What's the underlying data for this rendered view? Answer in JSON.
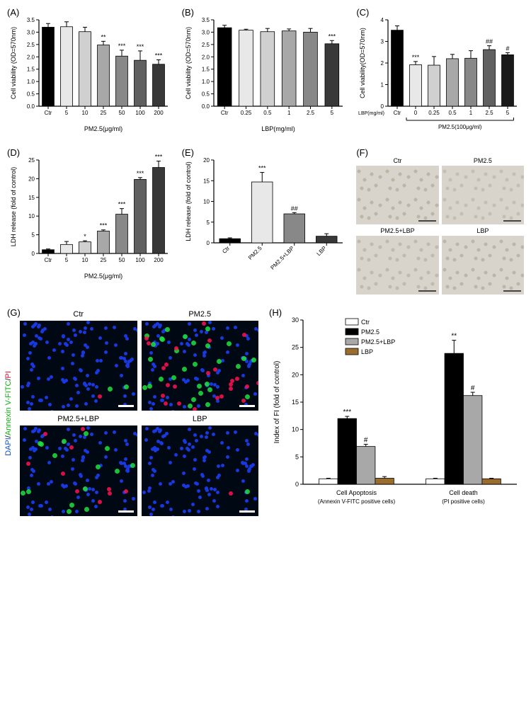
{
  "colors": {
    "axis": "#000000",
    "bar_stroke": "#000000",
    "error_bar": "#000000",
    "bar_fills": [
      "#000000",
      "#e8e8e8",
      "#d0d0d0",
      "#a8a8a8",
      "#888888",
      "#606060",
      "#383838",
      "#1a1a1a"
    ]
  },
  "panelA": {
    "label": "(A)",
    "type": "bar",
    "ylabel": "Cell viability (OD=570nm)",
    "xlabel": "PM2.5(μg/ml)",
    "categories": [
      "Ctr",
      "5",
      "10",
      "25",
      "50",
      "100",
      "200"
    ],
    "values": [
      3.2,
      3.22,
      3.02,
      2.48,
      2.03,
      1.86,
      1.7
    ],
    "errors": [
      0.15,
      0.2,
      0.18,
      0.15,
      0.24,
      0.38,
      0.18
    ],
    "sig": [
      "",
      "",
      "",
      "**",
      "***",
      "***",
      "***"
    ],
    "bar_colors": [
      "#000000",
      "#e8e8e8",
      "#d0d0d0",
      "#a8a8a8",
      "#888888",
      "#606060",
      "#383838"
    ],
    "ylim": [
      0,
      3.5
    ],
    "ytick_step": 0.5,
    "label_fontsize": 9
  },
  "panelB": {
    "label": "(B)",
    "type": "bar",
    "ylabel": "Cell viability (OD=570nm)",
    "xlabel": "LBP(mg/ml)",
    "categories": [
      "Ctr",
      "0.25",
      "0.5",
      "1",
      "2.5",
      "5"
    ],
    "values": [
      3.18,
      3.08,
      3.02,
      3.05,
      3.0,
      2.53
    ],
    "errors": [
      0.1,
      0.04,
      0.13,
      0.08,
      0.15,
      0.13
    ],
    "sig": [
      "",
      "",
      "",
      "",
      "",
      "***"
    ],
    "bar_colors": [
      "#000000",
      "#e8e8e8",
      "#d0d0d0",
      "#a8a8a8",
      "#888888",
      "#383838"
    ],
    "ylim": [
      0,
      3.5
    ],
    "ytick_step": 0.5,
    "label_fontsize": 9
  },
  "panelC": {
    "label": "(C)",
    "type": "bar",
    "ylabel": "Cell viability(OD=570nm)",
    "xlabel_top": "LBP(mg/ml)",
    "xlabel_bottom": "PM2.5(100μg/ml)",
    "categories": [
      "Ctr",
      "0",
      "0.25",
      "0.5",
      "1",
      "2.5",
      "5"
    ],
    "values": [
      3.52,
      1.92,
      1.9,
      2.2,
      2.22,
      2.62,
      2.38
    ],
    "errors": [
      0.2,
      0.15,
      0.4,
      0.2,
      0.35,
      0.18,
      0.1
    ],
    "sig": [
      "",
      "***",
      "",
      "",
      "",
      "##",
      "#"
    ],
    "bar_colors": [
      "#000000",
      "#e8e8e8",
      "#d0d0d0",
      "#a8a8a8",
      "#888888",
      "#606060",
      "#1a1a1a"
    ],
    "ylim": [
      0,
      4
    ],
    "ytick_step": 1,
    "label_fontsize": 9
  },
  "panelD": {
    "label": "(D)",
    "type": "bar",
    "ylabel": "LDH release (fold of control)",
    "xlabel": "PM2.5(μg/ml)",
    "categories": [
      "Ctr",
      "5",
      "10",
      "25",
      "50",
      "100",
      "200"
    ],
    "values": [
      1,
      2.4,
      3.1,
      6.0,
      10.5,
      19.8,
      23.0
    ],
    "errors": [
      0.2,
      0.8,
      0.3,
      0.3,
      1.5,
      0.5,
      1.7
    ],
    "sig": [
      "",
      "",
      "*",
      "***",
      "***",
      "***",
      "***"
    ],
    "bar_colors": [
      "#000000",
      "#e8e8e8",
      "#d0d0d0",
      "#a8a8a8",
      "#888888",
      "#606060",
      "#383838"
    ],
    "ylim": [
      0,
      25
    ],
    "ytick_step": 5,
    "label_fontsize": 9
  },
  "panelE": {
    "label": "(E)",
    "type": "bar",
    "ylabel": "LDH release (fold of control)",
    "categories": [
      "Ctr",
      "PM2.5",
      "PM2.5+LBP",
      "LBP"
    ],
    "values": [
      1,
      14.7,
      7.0,
      1.6
    ],
    "errors": [
      0.2,
      2.3,
      0.3,
      0.6
    ],
    "sig": [
      "",
      "***",
      "##",
      ""
    ],
    "bar_colors": [
      "#000000",
      "#e8e8e8",
      "#888888",
      "#383838"
    ],
    "ylim": [
      0,
      20
    ],
    "ytick_step": 5,
    "label_fontsize": 9,
    "rotate_x": true
  },
  "panelF": {
    "label": "(F)",
    "images": [
      "Ctr",
      "PM2.5",
      "PM2.5+LBP",
      "LBP"
    ]
  },
  "panelG": {
    "label": "(G)",
    "ylabel_stack": [
      "DAPI",
      "Annexin V-FITC",
      "PI"
    ],
    "ylabel_colors": [
      "#1050d0",
      "#10b010",
      "#e01030"
    ],
    "images": [
      "Ctr",
      "PM2.5",
      "PM2.5+LBP",
      "LBP"
    ]
  },
  "panelH": {
    "label": "(H)",
    "type": "grouped_bar",
    "ylabel": "Index of FI (fold of control)",
    "groups": [
      "Cell Apoptosis\n(Annexin V-FITC positive cells)",
      "Cell death\n(PI positive cells)"
    ],
    "series": [
      "Ctr",
      "PM2.5",
      "PM2.5+LBP",
      "LBP"
    ],
    "series_colors": [
      "#ffffff",
      "#000000",
      "#a8a8a8",
      "#9a6d2f"
    ],
    "values": [
      [
        1,
        12.0,
        6.9,
        1.1
      ],
      [
        1,
        23.9,
        16.2,
        1.0
      ]
    ],
    "errors": [
      [
        0.1,
        0.4,
        0.4,
        0.3
      ],
      [
        0.1,
        2.4,
        0.6,
        0.1
      ]
    ],
    "sig": [
      [
        "",
        "***",
        "#",
        ""
      ],
      [
        "",
        "**",
        "#",
        ""
      ]
    ],
    "ylim": [
      0,
      30
    ],
    "ytick_step": 5,
    "label_fontsize": 9
  }
}
